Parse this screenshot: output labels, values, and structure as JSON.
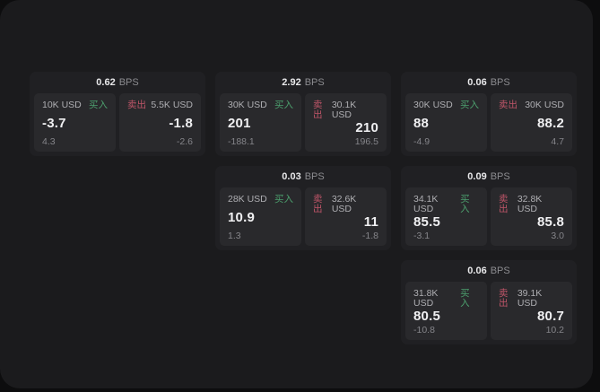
{
  "labels": {
    "bps": "BPS",
    "buy": "买入",
    "sell": "卖出"
  },
  "colors": {
    "outer_background": "#0d0d0e",
    "surface_background": "#1b1b1d",
    "card_background": "#202023",
    "tile_background": "#29292c",
    "buy_green": "#4c9f6d",
    "sell_red": "#bf5568",
    "value_text": "#f0f0f2",
    "muted_text": "#8c8c90"
  },
  "cards": [
    {
      "bps": "0.62",
      "buy": {
        "amount": "10K USD",
        "value": "-3.7",
        "delta": "4.3"
      },
      "sell": {
        "amount": "5.5K USD",
        "value": "-1.8",
        "delta": "-2.6"
      }
    },
    {
      "bps": "2.92",
      "buy": {
        "amount": "30K USD",
        "value": "201",
        "delta": "-188.1"
      },
      "sell": {
        "amount": "30.1K USD",
        "value": "210",
        "delta": "196.5"
      }
    },
    {
      "bps": "0.06",
      "buy": {
        "amount": "30K USD",
        "value": "88",
        "delta": "-4.9"
      },
      "sell": {
        "amount": "30K USD",
        "value": "88.2",
        "delta": "4.7"
      }
    },
    {
      "bps": "0.03",
      "buy": {
        "amount": "28K USD",
        "value": "10.9",
        "delta": "1.3"
      },
      "sell": {
        "amount": "32.6K USD",
        "value": "11",
        "delta": "-1.8"
      }
    },
    {
      "bps": "0.09",
      "buy": {
        "amount": "34.1K USD",
        "value": "85.5",
        "delta": "-3.1"
      },
      "sell": {
        "amount": "32.8K USD",
        "value": "85.8",
        "delta": "3.0"
      }
    },
    {
      "bps": "0.06",
      "buy": {
        "amount": "31.8K USD",
        "value": "80.5",
        "delta": "-10.8"
      },
      "sell": {
        "amount": "39.1K USD",
        "value": "80.7",
        "delta": "10.2"
      }
    }
  ]
}
